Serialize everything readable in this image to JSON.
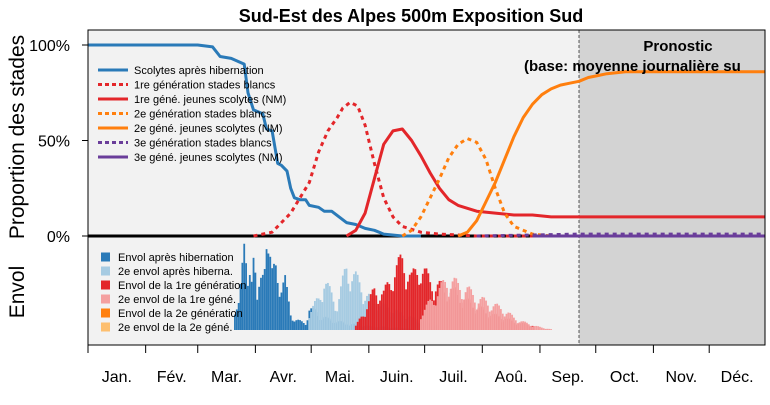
{
  "chart_data": {
    "type": "line",
    "title": "Sud-Est des Alpes 500m Exposition Sud",
    "ylabel_top": "Proportion des stades",
    "ylabel_bottom": "Envol",
    "yticks": [
      "100%",
      "50%",
      "0%"
    ],
    "xlim": [
      1,
      365
    ],
    "ylim": [
      0,
      100
    ],
    "months": [
      {
        "label": "Jan.",
        "start": 1
      },
      {
        "label": "Fév.",
        "start": 32
      },
      {
        "label": "Mar.",
        "start": 60
      },
      {
        "label": "Avr.",
        "start": 91
      },
      {
        "label": "Mai.",
        "start": 121
      },
      {
        "label": "Juin.",
        "start": 152
      },
      {
        "label": "Juil.",
        "start": 182
      },
      {
        "label": "Aoû.",
        "start": 213
      },
      {
        "label": "Sep.",
        "start": 244
      },
      {
        "label": "Oct.",
        "start": 274
      },
      {
        "label": "Nov.",
        "start": 305
      },
      {
        "label": "Déc.",
        "start": 335
      }
    ],
    "forecast": {
      "start_day": 265,
      "title": "Pronostic",
      "subtitle": "(base: moyenne journalière su"
    },
    "colors": {
      "blue": "#2a7ab8",
      "light_blue": "#a6cbe2",
      "red": "#e3262a",
      "pink": "#f4a0a0",
      "orange": "#ff7f0e",
      "light_orange": "#fdbf6f",
      "purple": "#6a3d9a",
      "forecast_bg": "#d3d3d3",
      "plot_bg": "#f2f2f2"
    },
    "series": [
      {
        "name": "Scolytes après hibernation",
        "style": "solid",
        "color": "#2a7ab8",
        "x": [
          1,
          60,
          68,
          72,
          78,
          85,
          87,
          90,
          95,
          97,
          100,
          103,
          105,
          108,
          110,
          112,
          115,
          118,
          120,
          125,
          128,
          132,
          140,
          145,
          150,
          155,
          160,
          170,
          180
        ],
        "y": [
          100,
          100,
          99,
          94,
          93,
          90,
          75,
          66,
          64,
          56,
          55,
          38,
          37,
          34,
          25,
          20,
          19,
          19,
          16,
          15,
          13,
          13,
          7,
          6,
          4,
          3,
          1,
          0,
          0
        ]
      },
      {
        "name": "1re génération stades blancs",
        "style": "dashed",
        "color": "#e3262a",
        "x": [
          90,
          100,
          110,
          120,
          125,
          130,
          135,
          138,
          142,
          146,
          150,
          155,
          160,
          165,
          170,
          180,
          190,
          200,
          210,
          230,
          250,
          265
        ],
        "y": [
          0,
          2,
          12,
          28,
          44,
          55,
          62,
          67,
          70,
          68,
          58,
          38,
          20,
          10,
          5,
          2,
          1,
          0.5,
          0,
          0,
          0,
          0
        ]
      },
      {
        "name": "1re géné. jeunes scolytes (NM)",
        "style": "solid",
        "color": "#e3262a",
        "x": [
          140,
          145,
          150,
          155,
          160,
          165,
          170,
          175,
          180,
          185,
          190,
          195,
          200,
          210,
          220,
          230,
          240,
          250,
          265,
          365
        ],
        "y": [
          0,
          3,
          12,
          30,
          48,
          55,
          56,
          50,
          42,
          33,
          25,
          19,
          16,
          13,
          12,
          11,
          11,
          10,
          10,
          10
        ]
      },
      {
        "name": "2e génération stades blancs",
        "style": "dashed",
        "color": "#ff7f0e",
        "x": [
          170,
          175,
          180,
          185,
          190,
          195,
          200,
          205,
          210,
          215,
          220,
          225,
          230,
          240,
          250,
          265
        ],
        "y": [
          0,
          3,
          10,
          20,
          30,
          41,
          48,
          51,
          49,
          40,
          25,
          12,
          5,
          1,
          0,
          0
        ]
      },
      {
        "name": "2e géné. jeunes scolytes (NM)",
        "style": "solid",
        "color": "#ff7f0e",
        "x": [
          200,
          205,
          210,
          215,
          220,
          225,
          230,
          235,
          240,
          245,
          250,
          255,
          260,
          265,
          270,
          275,
          280,
          290,
          300,
          365
        ],
        "y": [
          0,
          2,
          8,
          18,
          28,
          40,
          52,
          62,
          69,
          74,
          77,
          79,
          80,
          81,
          83,
          84,
          85,
          86,
          86,
          86
        ]
      },
      {
        "name": "3e génération stades blancs",
        "style": "dashed",
        "color": "#6a3d9a",
        "x": [
          210,
          240,
          265,
          300,
          365
        ],
        "y": [
          0,
          0.5,
          1,
          1,
          1
        ]
      },
      {
        "name": "3e géné. jeunes scolytes (NM)",
        "style": "solid",
        "color": "#6a3d9a",
        "x": [
          240,
          365
        ],
        "y": [
          0,
          0
        ]
      }
    ],
    "flight_series": [
      {
        "name": "Envol après hibernation",
        "color": "#2a7ab8",
        "x": [
          80,
          82,
          85,
          87,
          88,
          90,
          92,
          95,
          97,
          98,
          100,
          102,
          105,
          107,
          110,
          112,
          115,
          118,
          120,
          125,
          130,
          135,
          140,
          145,
          150,
          155,
          160,
          165,
          170,
          175
        ],
        "y": [
          15,
          35,
          70,
          40,
          60,
          80,
          25,
          55,
          100,
          75,
          50,
          60,
          40,
          45,
          15,
          10,
          8,
          6,
          20,
          15,
          10,
          8,
          6,
          5,
          4,
          3,
          3,
          2,
          2,
          1
        ]
      },
      {
        "name": "2e envol après hiberna.",
        "color": "#a6cbe2",
        "x": [
          120,
          125,
          128,
          132,
          135,
          138,
          140,
          142,
          145,
          148,
          150,
          155,
          160,
          165,
          170,
          175,
          180,
          185,
          190
        ],
        "y": [
          20,
          40,
          60,
          45,
          30,
          60,
          80,
          70,
          65,
          55,
          45,
          35,
          30,
          25,
          20,
          15,
          12,
          8,
          5
        ]
      },
      {
        "name": "Envol de la 1re génération",
        "color": "#e3262a",
        "x": [
          145,
          150,
          155,
          160,
          165,
          170,
          175,
          180,
          185,
          190,
          195,
          200,
          205,
          210,
          215,
          220,
          225,
          230,
          235,
          240
        ],
        "y": [
          5,
          25,
          50,
          45,
          70,
          88,
          65,
          80,
          60,
          55,
          50,
          45,
          35,
          30,
          22,
          18,
          15,
          10,
          8,
          6
        ]
      },
      {
        "name": "2e envol de la 1re géné.",
        "color": "#f4a0a0",
        "x": [
          180,
          185,
          190,
          195,
          200,
          205,
          210,
          215,
          220,
          225,
          230,
          235,
          240,
          245,
          250
        ],
        "y": [
          20,
          35,
          50,
          65,
          55,
          50,
          40,
          35,
          30,
          25,
          15,
          10,
          6,
          3,
          1
        ]
      },
      {
        "name": "Envol de la 2e génération",
        "color": "#ff7f0e",
        "x": [],
        "y": []
      },
      {
        "name": "2e envol de la 2e géné.",
        "color": "#fdbf6f",
        "x": [],
        "y": []
      }
    ]
  }
}
